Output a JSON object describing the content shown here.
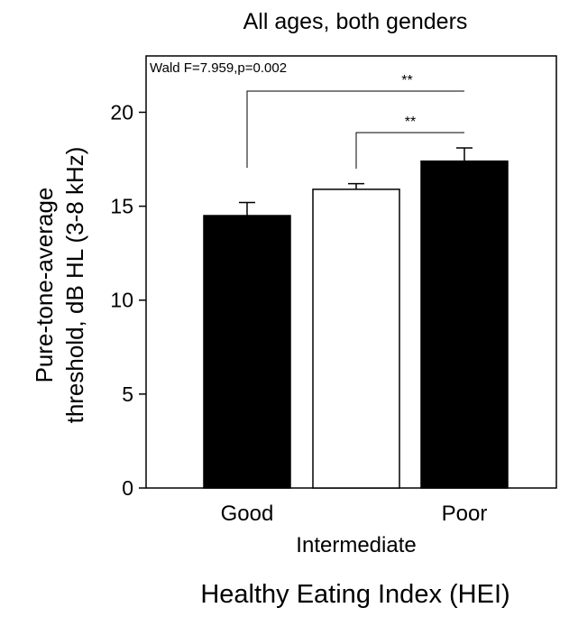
{
  "chart_data": {
    "type": "bar",
    "title": "All ages, both genders",
    "ylabel_line1": "Pure-tone-average",
    "ylabel_line2": "threshold, dB HL (3-8 kHz)",
    "xlabel": "Healthy Eating Index (HEI)",
    "annotation": "Wald F=7.959,p=0.002",
    "categories": [
      "Good",
      "Intermediate",
      "Poor"
    ],
    "values": [
      14.5,
      15.9,
      17.4
    ],
    "error_upper": [
      15.2,
      16.2,
      18.1
    ],
    "bar_colors": [
      "#000000",
      "#ffffff",
      "#000000"
    ],
    "ylim": [
      0,
      23
    ],
    "yticks": [
      0,
      5,
      10,
      15,
      20
    ],
    "significance": [
      {
        "from": 0,
        "to": 2,
        "label": "**"
      },
      {
        "from": 1,
        "to": 2,
        "label": "**"
      }
    ]
  }
}
